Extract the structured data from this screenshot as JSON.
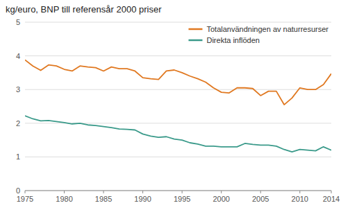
{
  "chart_data": {
    "type": "line",
    "title": "kg/euro,  BNP till referensår  2000 priser",
    "x": [
      1975,
      1976,
      1977,
      1978,
      1979,
      1980,
      1981,
      1982,
      1983,
      1984,
      1985,
      1986,
      1987,
      1988,
      1989,
      1990,
      1991,
      1992,
      1993,
      1994,
      1995,
      1996,
      1997,
      1998,
      1999,
      2000,
      2001,
      2002,
      2003,
      2004,
      2005,
      2006,
      2007,
      2008,
      2009,
      2010,
      2011,
      2012,
      2013,
      2014
    ],
    "series": [
      {
        "name": "Totalanvändningen av naturresurser",
        "color": "#E07820",
        "values": [
          3.88,
          3.7,
          3.57,
          3.73,
          3.7,
          3.6,
          3.55,
          3.7,
          3.67,
          3.65,
          3.55,
          3.67,
          3.62,
          3.62,
          3.55,
          3.35,
          3.32,
          3.3,
          3.55,
          3.58,
          3.5,
          3.4,
          3.32,
          3.22,
          3.05,
          2.92,
          2.9,
          3.05,
          3.05,
          3.03,
          2.82,
          2.95,
          2.95,
          2.55,
          2.75,
          3.05,
          3.0,
          3.0,
          3.15,
          3.47
        ]
      },
      {
        "name": "Direkta inflöden",
        "color": "#3A9A8A",
        "values": [
          2.22,
          2.13,
          2.07,
          2.08,
          2.05,
          2.02,
          1.98,
          2.0,
          1.95,
          1.93,
          1.9,
          1.87,
          1.83,
          1.82,
          1.8,
          1.68,
          1.62,
          1.58,
          1.6,
          1.53,
          1.5,
          1.42,
          1.38,
          1.32,
          1.32,
          1.3,
          1.3,
          1.3,
          1.4,
          1.37,
          1.35,
          1.35,
          1.32,
          1.22,
          1.15,
          1.22,
          1.2,
          1.18,
          1.3,
          1.2
        ]
      }
    ],
    "xlim": [
      1975,
      2014
    ],
    "ylim": [
      0,
      5
    ],
    "xticks": [
      1975,
      1980,
      1985,
      1990,
      1995,
      2000,
      2005,
      2010,
      2014
    ],
    "yticks": [
      0,
      1,
      2,
      3,
      4,
      5
    ],
    "grid": true,
    "legend": "upper right"
  }
}
